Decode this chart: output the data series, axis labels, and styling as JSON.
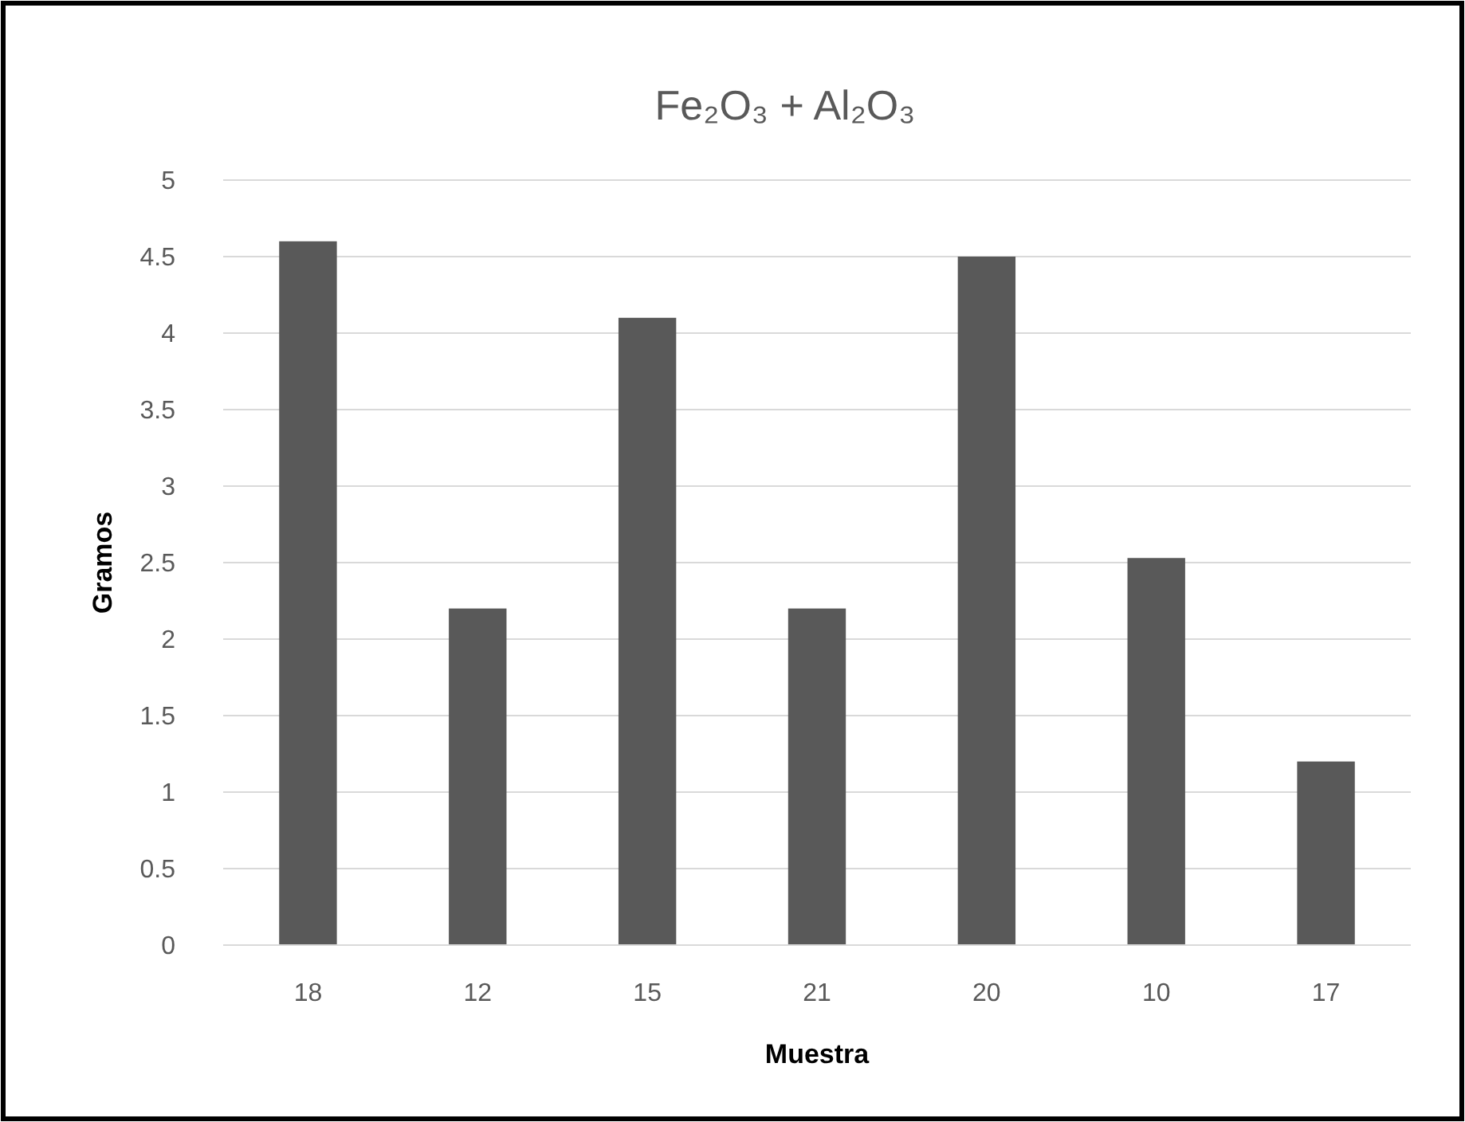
{
  "chart_data": {
    "type": "bar",
    "title": "Fe₂O₃ + Al₂O₃",
    "xlabel": "Muestra",
    "ylabel": "Gramos",
    "categories": [
      "18",
      "12",
      "15",
      "21",
      "20",
      "10",
      "17"
    ],
    "values": [
      4.6,
      2.2,
      4.1,
      2.2,
      4.5,
      2.53,
      1.2
    ],
    "color": "#595959",
    "ylim": [
      0,
      5
    ],
    "yticks": [
      0,
      0.5,
      1,
      1.5,
      2,
      2.5,
      3,
      3.5,
      4,
      4.5,
      5
    ],
    "grid": "y"
  }
}
